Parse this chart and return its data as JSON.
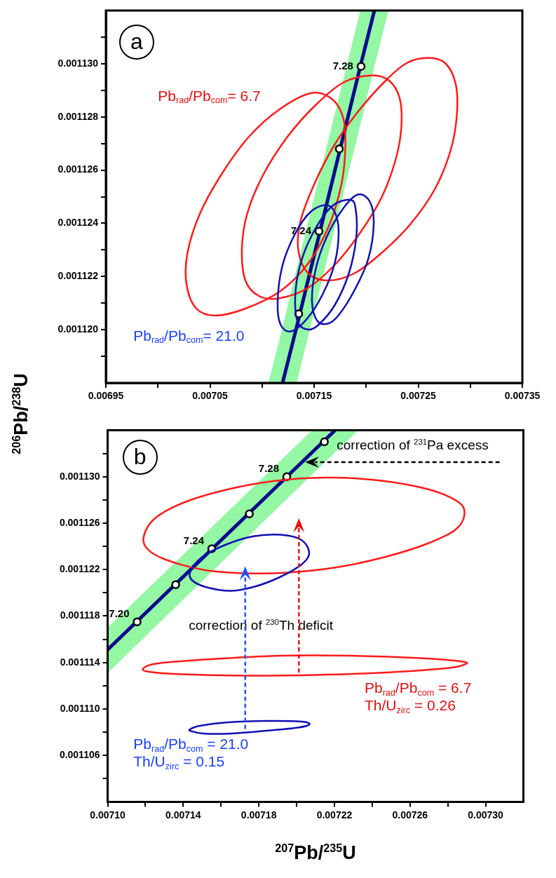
{
  "chart_data": [
    {
      "type": "line",
      "title": "a",
      "ylabel": "$^{206}$Pb/$^{238}$U",
      "grid": false,
      "legend": false,
      "xlim": [
        0.00695,
        0.00735
      ],
      "ylim": [
        0.001118,
        0.001132
      ],
      "xticks": [
        0.00695,
        {
          "value": 0.007,
          "label": null
        },
        0.00705,
        {
          "value": 0.0071,
          "label": null
        },
        0.00715,
        {
          "value": 0.0072,
          "label": null
        },
        0.00725,
        {
          "value": 0.0073,
          "label": null
        },
        0.00735
      ],
      "yticks": [
        {
          "value": 0.001119,
          "label": null
        },
        {
          "value": 0.00112,
          "label": "0.001120"
        },
        {
          "value": 0.001121,
          "label": null
        },
        {
          "value": 0.001122,
          "label": "0.001122"
        },
        {
          "value": 0.001123,
          "label": null
        },
        {
          "value": 0.001124,
          "label": "0.001124"
        },
        {
          "value": 0.001125,
          "label": null
        },
        {
          "value": 0.001126,
          "label": "0.001126"
        },
        {
          "value": 0.001127,
          "label": null
        },
        {
          "value": 0.001128,
          "label": "0.001128"
        },
        {
          "value": 0.001129,
          "label": null
        },
        {
          "value": 0.00113,
          "label": "0.001130"
        },
        {
          "value": 0.001131,
          "label": null
        }
      ],
      "series": [
        {
          "color": "#0a0a8c",
          "x": [
            0.0071062,
            0.0071197,
            0.0071332,
            0.0071944,
            0.0072079,
            0.0072214
          ],
          "values": [
            null,
            0.001118,
            0.0011201,
            0.0011299,
            0.001132,
            null
          ],
          "lower": [
            0.001118,
            0.001118,
            0.001118,
            0.0011277,
            0.0011299,
            0.001132
          ],
          "upper": [
            0.001118,
            0.0011201,
            0.0011223,
            0.001132,
            0.001132,
            0.001132
          ]
        },
        {
          "type": "scatter",
          "marker": "circle",
          "color": "#ffffff",
          "x": [
            0.0071951,
            0.0071742,
            0.0071547,
            0.0071352
          ],
          "values": [
            0.0011299,
            0.0011268,
            0.0011237,
            0.0011206
          ]
        }
      ],
      "annotations": [
        {
          "text": "7.28",
          "x": 0.0071951,
          "y": 0.0011299
        },
        {
          "text": "7.24",
          "x": 0.0071547,
          "y": 0.0011237
        },
        "Pb$_{rad}$/Pb$_{com}$= 6.7",
        "Pb$_{rad}$/Pb$_{com}$= 21.0"
      ]
    },
    {
      "type": "line",
      "title": "b",
      "xlabel": "$^{207}$Pb/$^{235}$U",
      "grid": false,
      "legend": false,
      "xlim": [
        0.0071,
        0.00732
      ],
      "ylim": [
        0.001102,
        0.001134
      ],
      "xticks": [
        {
          "value": 0.0071,
          "label": "0.00710"
        },
        {
          "value": 0.00712,
          "label": null
        },
        0.00714,
        {
          "value": 0.00716,
          "label": null
        },
        0.00718,
        {
          "value": 0.0072,
          "label": null
        },
        0.00722,
        {
          "value": 0.00724,
          "label": null
        },
        0.00726,
        {
          "value": 0.00728,
          "label": null
        },
        {
          "value": 0.0073,
          "label": "0.00730"
        }
      ],
      "yticks": [
        {
          "value": 0.001104,
          "label": null
        },
        0.001106,
        {
          "value": 0.001108,
          "label": null
        },
        {
          "value": 0.00111,
          "label": "0.001110"
        },
        {
          "value": 0.001112,
          "label": null
        },
        0.001114,
        {
          "value": 0.001116,
          "label": null
        },
        0.001118,
        {
          "value": 0.00112,
          "label": null
        },
        0.001122,
        {
          "value": 0.001124,
          "label": null
        },
        0.001126,
        {
          "value": 0.001128,
          "label": null
        },
        {
          "value": 0.00113,
          "label": "0.001130"
        },
        {
          "value": 0.001132,
          "label": null
        }
      ],
      "series": [
        {
          "color": "#0a0a8c",
          "x": [
            0.0071,
            0.0072082,
            0.0072204,
            0.0072327
          ],
          "values": [
            0.0011151,
            0.0011321,
            0.001134,
            null
          ],
          "lower": [
            0.0011131,
            0.0011302,
            0.0011321,
            0.001134
          ],
          "upper": [
            0.001117,
            0.001134,
            0.001134,
            0.001134
          ]
        },
        {
          "type": "scatter",
          "marker": "circle",
          "color": "#ffffff",
          "x": [
            0.0072147,
            0.0071948,
            0.007175,
            0.0071551,
            0.007136,
            0.0071156
          ],
          "values": [
            0.001133,
            0.00113,
            0.0011268,
            0.0011238,
            0.0011207,
            0.0011175
          ]
        }
      ],
      "annotations": [
        {
          "text": "7.28",
          "x": 0.0071948,
          "y": 0.00113
        },
        {
          "text": "7.24",
          "x": 0.0071551,
          "y": 0.0011238
        },
        {
          "text": "7.20",
          "x": 0.0071156,
          "y": 0.0011175
        },
        "correction of $^{231}$Pa excess",
        "correction of $^{230}$Th deficit",
        "Pb$_{rad}$/Pb$_{com}$ = 6.7\nTh/U$_{zirc}$ = 0.26",
        "Pb$_{rad}$/Pb$_{com}$ = 21.0\nTh/U$_{zirc}$ = 0.15"
      ]
    }
  ]
}
